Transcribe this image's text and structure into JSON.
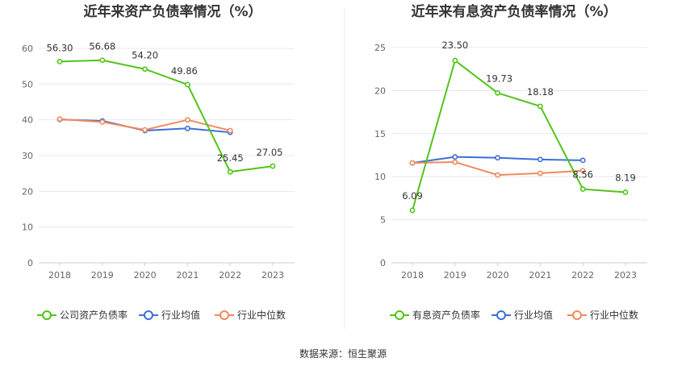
{
  "source_text": "数据来源：恒生聚源",
  "chart_data": [
    {
      "type": "line",
      "title": "近年来资产负债率情况（%）",
      "categories": [
        "2018",
        "2019",
        "2020",
        "2021",
        "2022",
        "2023"
      ],
      "yticks": [
        "0",
        "10",
        "20",
        "30",
        "40",
        "50",
        "60"
      ],
      "ylim": [
        0,
        60
      ],
      "grid": true,
      "legend_position": "bottom",
      "series": [
        {
          "name": "公司资产负债率",
          "color": "#52c41a",
          "values": [
            56.3,
            56.68,
            54.2,
            49.86,
            25.45,
            27.05
          ],
          "labels": [
            "56.30",
            "56.68",
            "54.20",
            "49.86",
            "25.45",
            "27.05"
          ]
        },
        {
          "name": "行业均值",
          "color": "#3b6fd6",
          "values": [
            40.1,
            39.7,
            37.0,
            37.6,
            36.5,
            null
          ]
        },
        {
          "name": "行业中位数",
          "color": "#f08a5d",
          "values": [
            40.2,
            39.4,
            37.2,
            40.0,
            37.0,
            null
          ]
        }
      ]
    },
    {
      "type": "line",
      "title": "近年来有息资产负债率情况（%）",
      "categories": [
        "2018",
        "2019",
        "2020",
        "2021",
        "2022",
        "2023"
      ],
      "yticks": [
        "0",
        "5",
        "10",
        "15",
        "20",
        "25"
      ],
      "ylim": [
        0,
        25
      ],
      "grid": true,
      "legend_position": "bottom",
      "series": [
        {
          "name": "有息资产负债率",
          "color": "#52c41a",
          "values": [
            6.09,
            23.5,
            19.73,
            18.18,
            8.56,
            8.19
          ],
          "labels": [
            "6.09",
            "23.50",
            "19.73",
            "18.18",
            "8.56",
            "8.19"
          ]
        },
        {
          "name": "行业均值",
          "color": "#3b6fd6",
          "values": [
            11.6,
            12.3,
            12.2,
            12.0,
            11.9,
            null
          ]
        },
        {
          "name": "行业中位数",
          "color": "#f08a5d",
          "values": [
            11.6,
            11.7,
            10.2,
            10.4,
            10.7,
            null
          ]
        }
      ]
    }
  ]
}
